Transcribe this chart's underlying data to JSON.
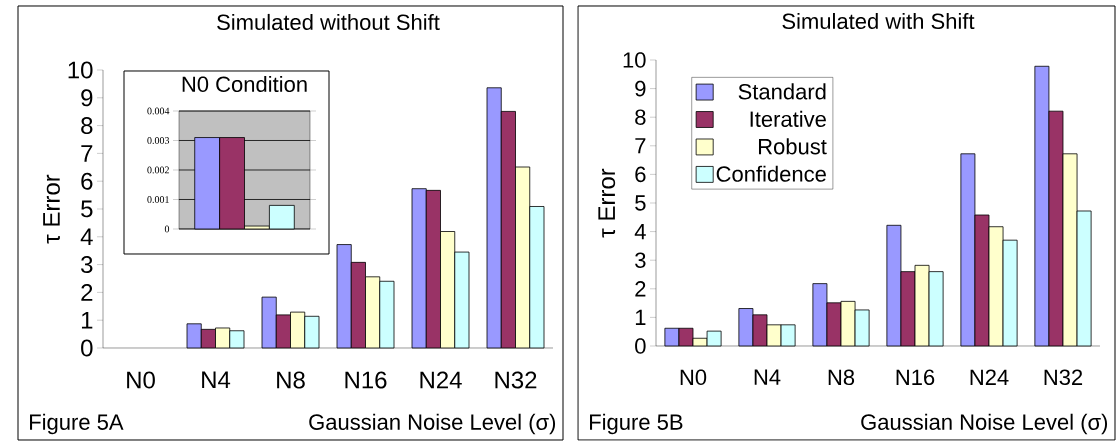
{
  "chart_data": [
    {
      "type": "bar",
      "title": "Simulated without Shift",
      "xlabel": "Gaussian Noise Level (σ)",
      "ylabel": "τ Error",
      "annotations": [
        "Figure 5A"
      ],
      "categories": [
        "N0",
        "N4",
        "N8",
        "N16",
        "N24",
        "N32"
      ],
      "ylim": [
        0,
        10
      ],
      "yticks": [
        0,
        1,
        2,
        3,
        4,
        5,
        6,
        7,
        8,
        9,
        10
      ],
      "series": [
        {
          "color": "#9999ff",
          "values": [
            null,
            0.87,
            1.83,
            3.72,
            5.73,
            9.36
          ]
        },
        {
          "color": "#993366",
          "values": [
            null,
            0.67,
            1.19,
            3.08,
            5.67,
            8.51
          ]
        },
        {
          "color": "#ffffcc",
          "values": [
            null,
            0.72,
            1.29,
            2.56,
            4.19,
            6.51
          ]
        },
        {
          "color": "#ccffff",
          "values": [
            null,
            0.62,
            1.14,
            2.4,
            3.45,
            5.09
          ]
        }
      ]
    },
    {
      "type": "bar",
      "title": "N0 Condition",
      "categories": [
        null
      ],
      "ylim": [
        0,
        0.004
      ],
      "yticks": [
        0,
        0.001,
        0.002,
        0.003,
        0.004
      ],
      "grid": "y",
      "tick_labels": "y",
      "series": [
        {
          "color": "#9999ff",
          "values": [
            0.0031
          ]
        },
        {
          "color": "#993366",
          "values": [
            0.0031
          ]
        },
        {
          "color": "#ffffcc",
          "values": [
            0.0001
          ]
        },
        {
          "color": "#ccffff",
          "values": [
            0.0008
          ]
        }
      ]
    },
    {
      "type": "bar",
      "title": "Simulated with Shift",
      "xlabel": "Gaussian Noise Level (σ)",
      "ylabel": "τ Error",
      "annotations": [
        "Figure 5B"
      ],
      "categories": [
        "N0",
        "N4",
        "N8",
        "N16",
        "N24",
        "N32"
      ],
      "ylim": [
        0,
        10
      ],
      "yticks": [
        0,
        1,
        2,
        3,
        4,
        5,
        6,
        7,
        8,
        9,
        10
      ],
      "legend": "top left",
      "series": [
        {
          "name": "Standard",
          "color": "#9999ff",
          "values": [
            0.62,
            1.31,
            2.18,
            4.22,
            6.72,
            9.78
          ]
        },
        {
          "name": "Iterative",
          "color": "#993366",
          "values": [
            0.62,
            1.09,
            1.51,
            2.6,
            4.58,
            8.21
          ]
        },
        {
          "name": "Robust",
          "color": "#ffffcc",
          "values": [
            0.27,
            0.74,
            1.56,
            2.82,
            4.17,
            6.72
          ]
        },
        {
          "name": "Confidence",
          "color": "#ccffff",
          "values": [
            0.52,
            0.74,
            1.26,
            2.6,
            3.7,
            4.72
          ]
        }
      ]
    }
  ]
}
